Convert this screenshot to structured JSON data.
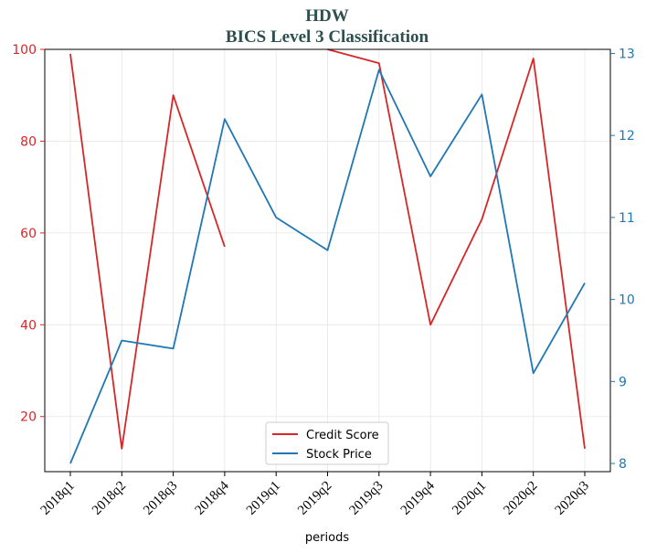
{
  "chart_data": {
    "type": "line",
    "title_line1": "HDW",
    "title_line2": "BICS Level 3 Classification",
    "xlabel": "periods",
    "categories": [
      "2018q1",
      "2018q2",
      "2018q3",
      "2018q4",
      "2019q1",
      "2019q2",
      "2019q3",
      "2019q4",
      "2020q1",
      "2020q2",
      "2020q3"
    ],
    "left_axis": {
      "ylim": [
        8,
        100
      ],
      "ticks": [
        20,
        40,
        60,
        80,
        100
      ],
      "color": "#d62728"
    },
    "right_axis": {
      "ylim": [
        7.9,
        13.05
      ],
      "ticks": [
        8,
        9,
        10,
        11,
        12,
        13
      ],
      "color": "#1f77b4"
    },
    "series": [
      {
        "name": "Credit Score",
        "axis": "left",
        "color": "#d62728",
        "values": [
          99,
          13,
          90,
          57,
          null,
          100,
          97,
          40,
          63,
          98,
          13
        ]
      },
      {
        "name": "Stock Price",
        "axis": "right",
        "color": "#1f77b4",
        "values": [
          8.0,
          9.5,
          9.4,
          12.2,
          11.0,
          10.6,
          12.8,
          11.5,
          12.5,
          9.1,
          10.2
        ]
      }
    ],
    "grid": true,
    "legend_position": "bottom-center"
  }
}
